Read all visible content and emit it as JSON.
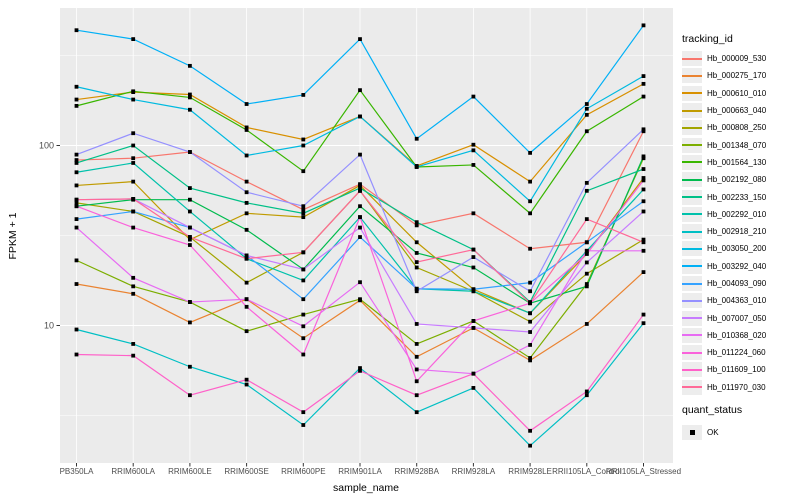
{
  "figure": {
    "panel_bg": "#EBEBEB",
    "grid_color": "#FFFFFF",
    "tick_color": "#333333",
    "axis_text_color": "#4D4D4D",
    "marker_color": "#000000"
  },
  "chart_data": {
    "type": "line",
    "xlabel": "sample_name",
    "ylabel": "FPKM + 1",
    "yscale": "log10",
    "ylim": [
      1.6,
      600
    ],
    "grid": true,
    "legend_position": "right",
    "y_ticks": [
      {
        "label": "100",
        "value": 100
      },
      {
        "label": "10",
        "value": 10
      }
    ],
    "y_minor_breaks": [
      3.162,
      31.62,
      316.2
    ],
    "categories": [
      "PB350LA",
      "RRIM600LA",
      "RRIM600LE",
      "RRIM600SE",
      "RRIM600PE",
      "RRIM901LA",
      "RRIM928BA",
      "RRIM928LA",
      "RRIM928LE",
      "RRII105LA_Control",
      "RRII105LA_Stressed"
    ],
    "series": [
      {
        "name": "Hb_000009_530",
        "color": "#F8766D",
        "values": [
          83,
          85,
          92,
          63,
          44,
          61,
          36,
          42,
          26.7,
          29,
          120
        ]
      },
      {
        "name": "Hb_000275_170",
        "color": "#EA8331",
        "values": [
          17,
          15,
          10.4,
          14,
          8.5,
          13.8,
          6.7,
          9.7,
          6.4,
          10.2,
          19.8
        ]
      },
      {
        "name": "Hb_000610_010",
        "color": "#D89000",
        "values": [
          180,
          198,
          192,
          126,
          108,
          145,
          77,
          101,
          63,
          148,
          220
        ]
      },
      {
        "name": "Hb_000663_040",
        "color": "#C09B00",
        "values": [
          60,
          63,
          30,
          42,
          40,
          60,
          29,
          15.9,
          11.7,
          25,
          66
        ]
      },
      {
        "name": "Hb_000808_250",
        "color": "#A3A500",
        "values": [
          48,
          43,
          31,
          17.3,
          25.5,
          56,
          21,
          15.5,
          10.5,
          19.4,
          30
        ]
      },
      {
        "name": "Hb_001348_070",
        "color": "#7CAE00",
        "values": [
          23,
          16.5,
          13.5,
          9.3,
          11.5,
          14,
          7.9,
          10.6,
          6.6,
          17,
          85
        ]
      },
      {
        "name": "Hb_001564_130",
        "color": "#39B600",
        "values": [
          166,
          200,
          185,
          122,
          72,
          203,
          76,
          78,
          42,
          120,
          187
        ]
      },
      {
        "name": "Hb_002192_080",
        "color": "#00BB4E",
        "values": [
          46,
          50,
          50,
          34,
          20.5,
          46,
          25.3,
          21,
          13.3,
          16.5,
          87
        ]
      },
      {
        "name": "Hb_002233_150",
        "color": "#00C087",
        "values": [
          80,
          100,
          58,
          48,
          42,
          58,
          37.5,
          26.4,
          13.5,
          56,
          74
        ]
      },
      {
        "name": "Hb_002292_010",
        "color": "#00C1AB",
        "values": [
          71,
          80,
          43,
          23.5,
          17.8,
          40,
          16,
          15.5,
          11.7,
          26,
          57
        ]
      },
      {
        "name": "Hb_002918_210",
        "color": "#00BFC4",
        "values": [
          9.5,
          7.9,
          5.9,
          4.7,
          2.8,
          5.8,
          3.3,
          4.5,
          2.15,
          4.1,
          10.3
        ]
      },
      {
        "name": "Hb_003050_200",
        "color": "#00BAE0",
        "values": [
          212,
          180,
          158,
          88,
          100,
          145,
          76,
          94,
          49,
          160,
          243
        ]
      },
      {
        "name": "Hb_003292_040",
        "color": "#00B0F6",
        "values": [
          437,
          390,
          277,
          170,
          191,
          390,
          109,
          187,
          91,
          170,
          465
        ]
      },
      {
        "name": "Hb_004093_090",
        "color": "#35A2FF",
        "values": [
          39,
          43,
          35,
          24.5,
          14,
          31,
          16,
          15.9,
          17.3,
          29,
          49
        ]
      },
      {
        "name": "Hb_004363_010",
        "color": "#9590FF",
        "values": [
          89,
          117,
          92,
          55,
          46,
          89,
          15.5,
          24,
          15.5,
          62,
          123
        ]
      },
      {
        "name": "Hb_007007_050",
        "color": "#C77CFF",
        "values": [
          50,
          50.5,
          35,
          24.5,
          20.5,
          35,
          10.2,
          9.7,
          9.2,
          22.4,
          43
        ]
      },
      {
        "name": "Hb_010368_020",
        "color": "#E76BF3",
        "values": [
          35,
          18.4,
          13.5,
          14,
          9.9,
          17.4,
          5.7,
          5.4,
          7.8,
          26,
          26
        ]
      },
      {
        "name": "Hb_011224_060",
        "color": "#FA62DB",
        "values": [
          46,
          35,
          28,
          12.7,
          6.9,
          40,
          4.9,
          10.6,
          13.3,
          25,
          64
        ]
      },
      {
        "name": "Hb_011609_100",
        "color": "#FF61C9",
        "values": [
          6.9,
          6.8,
          4.1,
          5.0,
          3.3,
          5.6,
          4.1,
          5.4,
          2.6,
          4.3,
          11.5
        ]
      },
      {
        "name": "Hb_011970_030",
        "color": "#FF6A98",
        "values": [
          50,
          50.5,
          31,
          23.5,
          25.5,
          56,
          22.5,
          26.4,
          13.3,
          39,
          29
        ]
      }
    ]
  },
  "legend": {
    "tracking_title": "tracking_id",
    "quant_title": "quant_status",
    "quant_entries": [
      {
        "label": "OK",
        "shape": "filled-square",
        "color": "#000000"
      }
    ]
  }
}
